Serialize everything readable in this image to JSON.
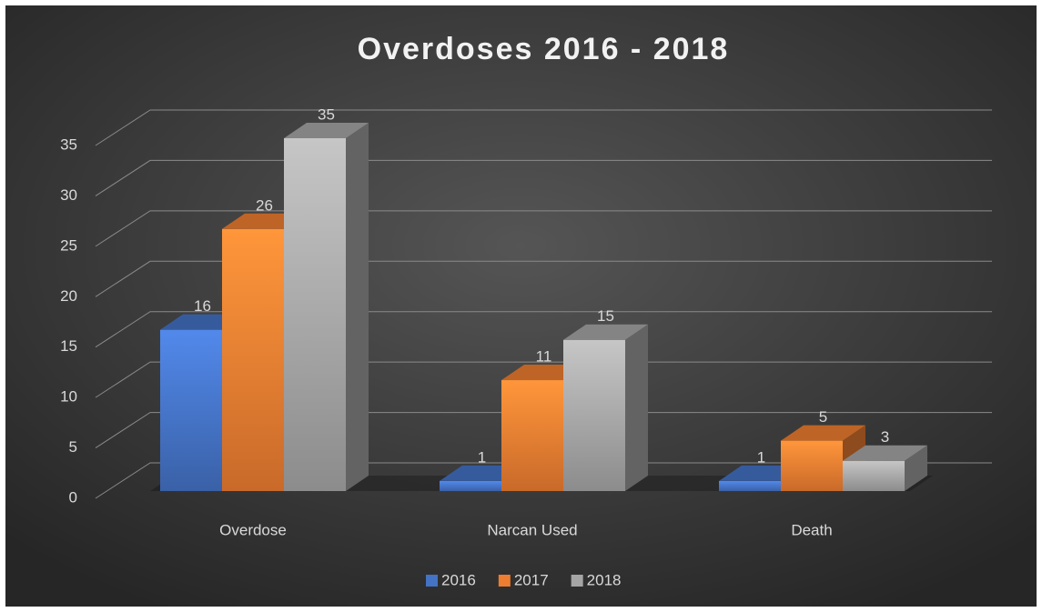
{
  "chart_data": {
    "type": "bar3d",
    "title": "Overdoses 2016 - 2018",
    "categories": [
      "Overdose",
      "Narcan Used",
      "Death"
    ],
    "series": [
      {
        "name": "2016",
        "color": "#4472c4",
        "values": [
          16,
          1,
          1
        ]
      },
      {
        "name": "2017",
        "color": "#ed7d31",
        "values": [
          26,
          11,
          5
        ]
      },
      {
        "name": "2018",
        "color": "#a5a5a5",
        "values": [
          35,
          15,
          3
        ]
      }
    ],
    "ylim": [
      0,
      35
    ],
    "yticks": [
      0,
      5,
      10,
      15,
      20,
      25,
      30,
      35
    ],
    "grid": true,
    "legend": "bottom"
  }
}
